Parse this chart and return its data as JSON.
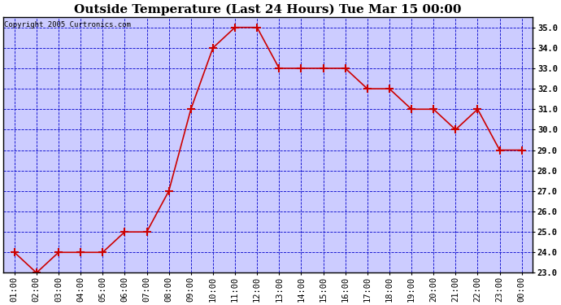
{
  "title": "Outside Temperature (Last 24 Hours) Tue Mar 15 00:00",
  "copyright": "Copyright 2005 Curtronics.com",
  "x_labels": [
    "01:00",
    "02:00",
    "03:00",
    "04:00",
    "05:00",
    "06:00",
    "07:00",
    "08:00",
    "09:00",
    "10:00",
    "11:00",
    "12:00",
    "13:00",
    "14:00",
    "15:00",
    "16:00",
    "17:00",
    "18:00",
    "19:00",
    "20:00",
    "21:00",
    "22:00",
    "23:00",
    "00:00"
  ],
  "y_values": [
    24.0,
    23.0,
    24.0,
    24.0,
    24.0,
    25.0,
    25.0,
    27.0,
    31.0,
    34.0,
    35.0,
    35.0,
    33.0,
    33.0,
    33.0,
    33.0,
    32.0,
    32.0,
    31.0,
    31.0,
    30.0,
    31.0,
    29.0,
    29.0
  ],
  "line_color": "#cc0000",
  "marker": "+",
  "marker_size": 7,
  "bg_color": "#ffffff",
  "plot_bg_color": "#ccccff",
  "grid_color": "#0000cc",
  "grid_style": "--",
  "ylim": [
    23.0,
    35.5
  ],
  "yticks": [
    23.0,
    24.0,
    25.0,
    26.0,
    27.0,
    28.0,
    29.0,
    30.0,
    31.0,
    32.0,
    33.0,
    34.0,
    35.0
  ],
  "title_fontsize": 11,
  "copyright_fontsize": 6.5,
  "tick_fontsize": 7.5,
  "line_width": 1.2
}
